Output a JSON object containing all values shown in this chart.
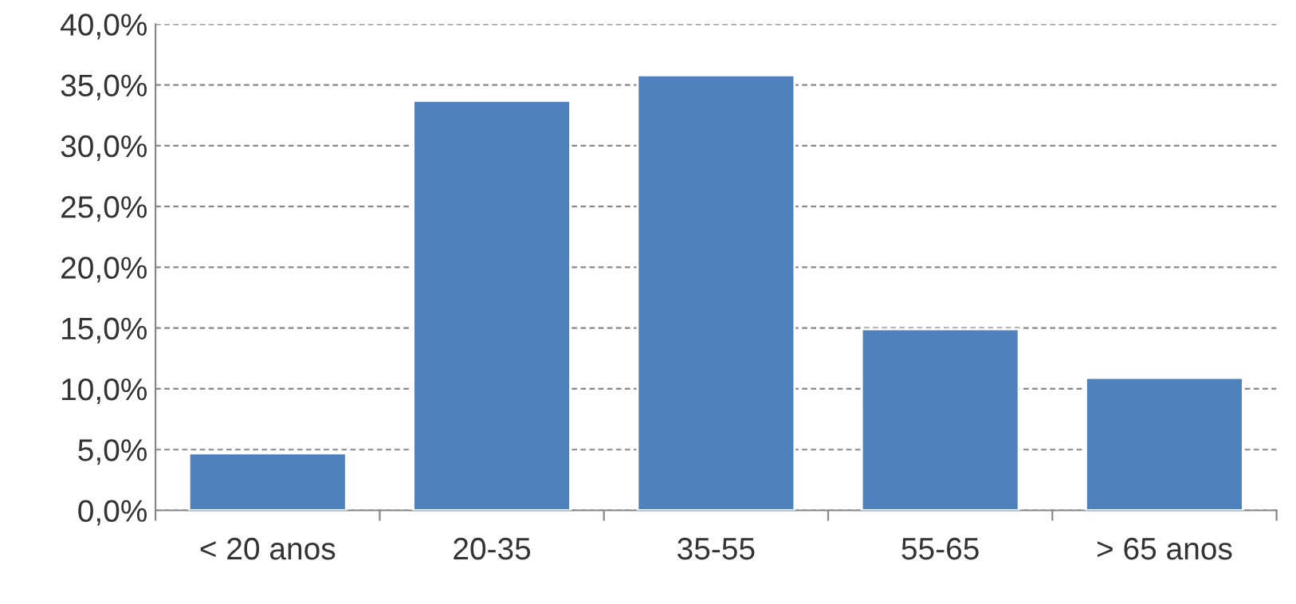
{
  "chart_data": {
    "type": "bar",
    "categories": [
      "< 20 anos",
      "20-35",
      "35-55",
      "55-65",
      "> 65 anos"
    ],
    "values": [
      4.7,
      33.7,
      35.8,
      14.9,
      10.9
    ],
    "color": "#4f81bd",
    "ylim": [
      0,
      40
    ],
    "yticks": [
      {
        "value": 0,
        "label": "0,0%"
      },
      {
        "value": 5,
        "label": "5,0%"
      },
      {
        "value": 10,
        "label": "10,0%"
      },
      {
        "value": 15,
        "label": "15,0%"
      },
      {
        "value": 20,
        "label": "20,0%"
      },
      {
        "value": 25,
        "label": "25,0%"
      },
      {
        "value": 30,
        "label": "30,0%"
      },
      {
        "value": 35,
        "label": "35,0%"
      },
      {
        "value": 40,
        "label": "40,0%"
      }
    ],
    "grid": "y"
  }
}
